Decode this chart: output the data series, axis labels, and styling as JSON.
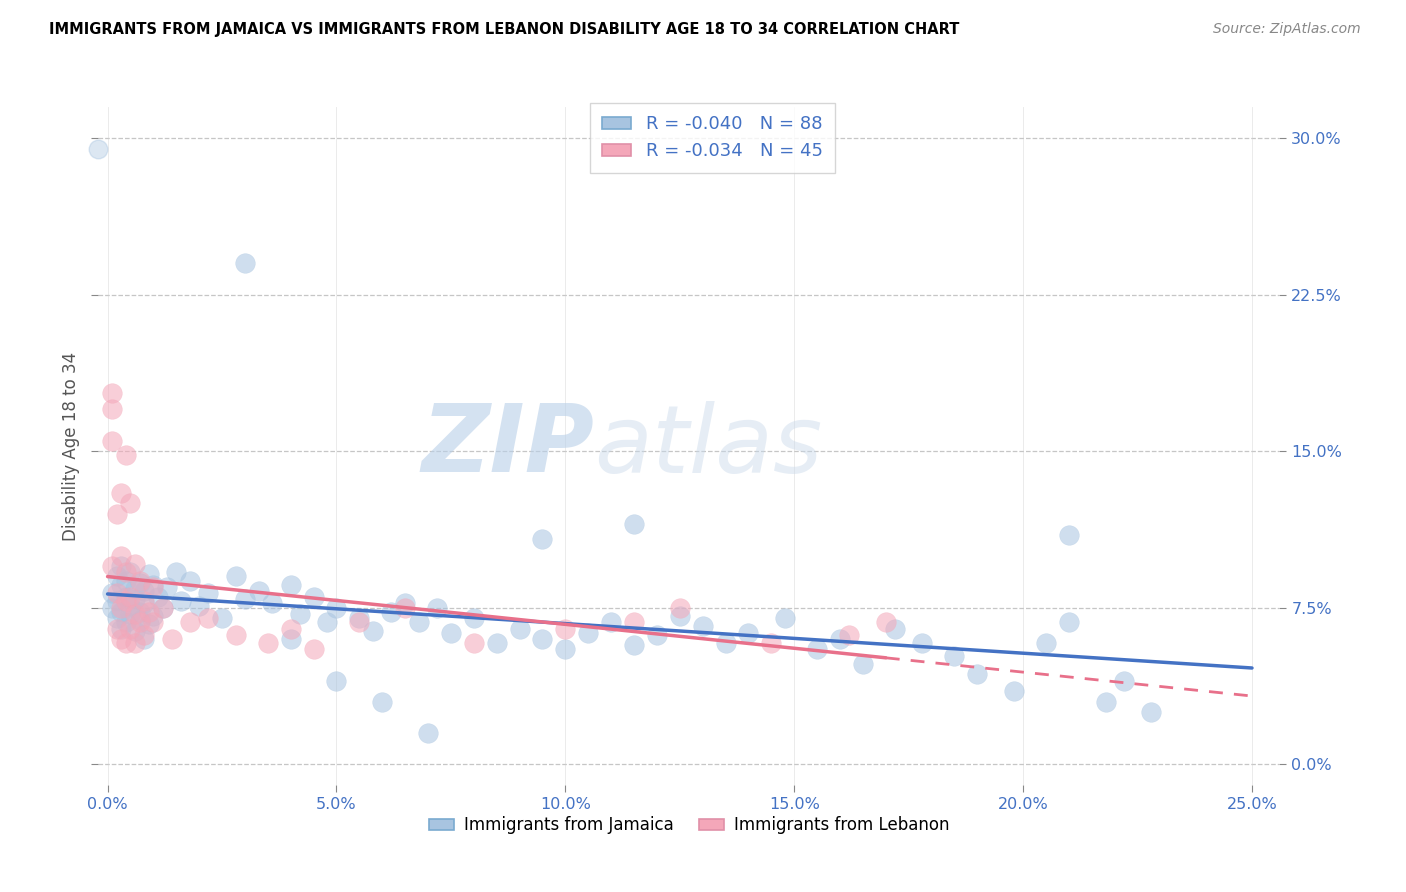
{
  "title": "IMMIGRANTS FROM JAMAICA VS IMMIGRANTS FROM LEBANON DISABILITY AGE 18 TO 34 CORRELATION CHART",
  "source": "Source: ZipAtlas.com",
  "xlabel_ticks": [
    "0.0%",
    "5.0%",
    "10.0%",
    "15.0%",
    "20.0%",
    "25.0%"
  ],
  "xlabel_vals": [
    0.0,
    0.05,
    0.1,
    0.15,
    0.2,
    0.25
  ],
  "ylabel_ticks": [
    "0.0%",
    "7.5%",
    "15.0%",
    "22.5%",
    "30.0%"
  ],
  "ylabel_vals": [
    0.0,
    0.075,
    0.15,
    0.225,
    0.3
  ],
  "ylabel_label": "Disability Age 18 to 34",
  "xlim": [
    -0.002,
    0.256
  ],
  "ylim": [
    -0.01,
    0.315
  ],
  "jamaica_color": "#a8c4e0",
  "lebanon_color": "#f4a7b9",
  "jamaica_line_color": "#4472c4",
  "lebanon_line_color": "#e8708a",
  "legend_jamaica_R": "-0.040",
  "legend_jamaica_N": "88",
  "legend_lebanon_R": "-0.034",
  "legend_lebanon_N": "45",
  "watermark_zip": "ZIP",
  "watermark_atlas": "atlas",
  "jamaica_x": [
    0.001,
    0.001,
    0.002,
    0.002,
    0.002,
    0.003,
    0.003,
    0.003,
    0.003,
    0.004,
    0.004,
    0.004,
    0.005,
    0.005,
    0.005,
    0.006,
    0.006,
    0.006,
    0.007,
    0.007,
    0.007,
    0.008,
    0.008,
    0.008,
    0.009,
    0.009,
    0.01,
    0.01,
    0.011,
    0.012,
    0.013,
    0.015,
    0.016,
    0.018,
    0.02,
    0.022,
    0.025,
    0.028,
    0.03,
    0.033,
    0.036,
    0.04,
    0.042,
    0.045,
    0.048,
    0.05,
    0.055,
    0.058,
    0.062,
    0.065,
    0.068,
    0.072,
    0.075,
    0.08,
    0.085,
    0.09,
    0.095,
    0.1,
    0.105,
    0.11,
    0.115,
    0.12,
    0.125,
    0.13,
    0.135,
    0.14,
    0.148,
    0.155,
    0.16,
    0.165,
    0.172,
    0.178,
    0.185,
    0.19,
    0.198,
    0.205,
    0.21,
    0.218,
    0.222,
    0.228,
    0.115,
    0.095,
    0.03,
    0.04,
    0.05,
    0.06,
    0.07,
    0.21
  ],
  "jamaica_y": [
    0.082,
    0.075,
    0.09,
    0.07,
    0.078,
    0.086,
    0.065,
    0.073,
    0.095,
    0.08,
    0.068,
    0.088,
    0.076,
    0.072,
    0.092,
    0.064,
    0.084,
    0.079,
    0.069,
    0.087,
    0.073,
    0.06,
    0.083,
    0.077,
    0.091,
    0.067,
    0.086,
    0.071,
    0.08,
    0.075,
    0.085,
    0.092,
    0.078,
    0.088,
    0.076,
    0.082,
    0.07,
    0.09,
    0.079,
    0.083,
    0.077,
    0.086,
    0.072,
    0.08,
    0.068,
    0.075,
    0.07,
    0.064,
    0.073,
    0.077,
    0.068,
    0.075,
    0.063,
    0.07,
    0.058,
    0.065,
    0.06,
    0.055,
    0.063,
    0.068,
    0.057,
    0.062,
    0.071,
    0.066,
    0.058,
    0.063,
    0.07,
    0.055,
    0.06,
    0.048,
    0.065,
    0.058,
    0.052,
    0.043,
    0.035,
    0.058,
    0.068,
    0.03,
    0.04,
    0.025,
    0.115,
    0.108,
    0.24,
    0.06,
    0.04,
    0.03,
    0.015,
    0.11
  ],
  "lebanon_x": [
    0.001,
    0.001,
    0.001,
    0.002,
    0.002,
    0.002,
    0.003,
    0.003,
    0.003,
    0.003,
    0.004,
    0.004,
    0.004,
    0.004,
    0.005,
    0.005,
    0.005,
    0.006,
    0.006,
    0.006,
    0.007,
    0.007,
    0.008,
    0.008,
    0.009,
    0.01,
    0.01,
    0.012,
    0.014,
    0.018,
    0.022,
    0.028,
    0.035,
    0.04,
    0.045,
    0.055,
    0.065,
    0.08,
    0.1,
    0.115,
    0.125,
    0.145,
    0.162,
    0.17,
    0.001
  ],
  "lebanon_y": [
    0.178,
    0.17,
    0.095,
    0.12,
    0.082,
    0.065,
    0.13,
    0.1,
    0.075,
    0.06,
    0.148,
    0.092,
    0.078,
    0.058,
    0.125,
    0.08,
    0.065,
    0.096,
    0.072,
    0.058,
    0.088,
    0.068,
    0.078,
    0.062,
    0.073,
    0.085,
    0.068,
    0.075,
    0.06,
    0.068,
    0.07,
    0.062,
    0.058,
    0.065,
    0.055,
    0.068,
    0.075,
    0.058,
    0.065,
    0.068,
    0.075,
    0.058,
    0.062,
    0.068,
    0.155
  ]
}
